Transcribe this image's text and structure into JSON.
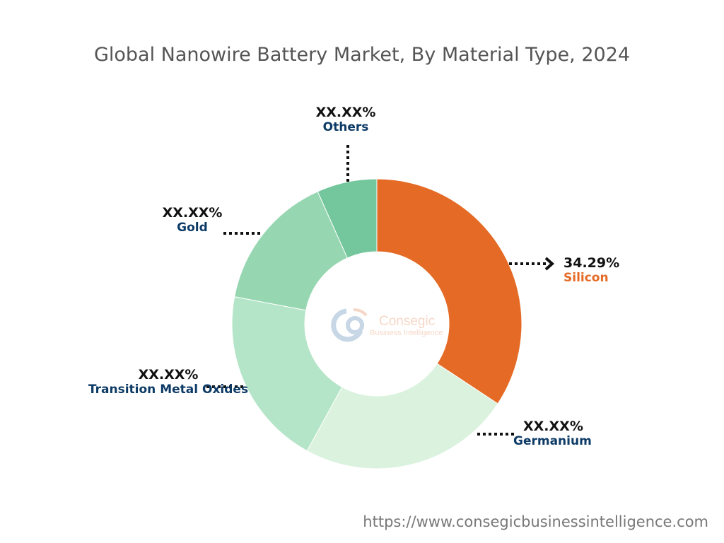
{
  "chart_data": {
    "type": "pie",
    "title": "Global Nanowire Battery Market, By Material Type, 2024",
    "categories": [
      "Silicon",
      "Germanium",
      "Transition Metal Oxides",
      "Gold",
      "Others"
    ],
    "values": [
      34.29,
      23.7,
      20.0,
      15.3,
      6.7
    ],
    "labels": [
      "34.29%",
      "XX.XX%",
      "XX.XX%",
      "XX.XX%",
      "XX.XX%"
    ],
    "colors": [
      "#E46A25",
      "#DAF2DE",
      "#B5E5C8",
      "#96D7B2",
      "#74C69C"
    ],
    "label_colors": [
      "#E46A25",
      "#0D3B66",
      "#0D3B66",
      "#0D3B66",
      "#0D3B66"
    ],
    "donut": true
  },
  "watermark": {
    "name": "Consegic",
    "sub": "Business Intelligence"
  },
  "footer_url": "https://www.consegicbusinessintelligence.com"
}
